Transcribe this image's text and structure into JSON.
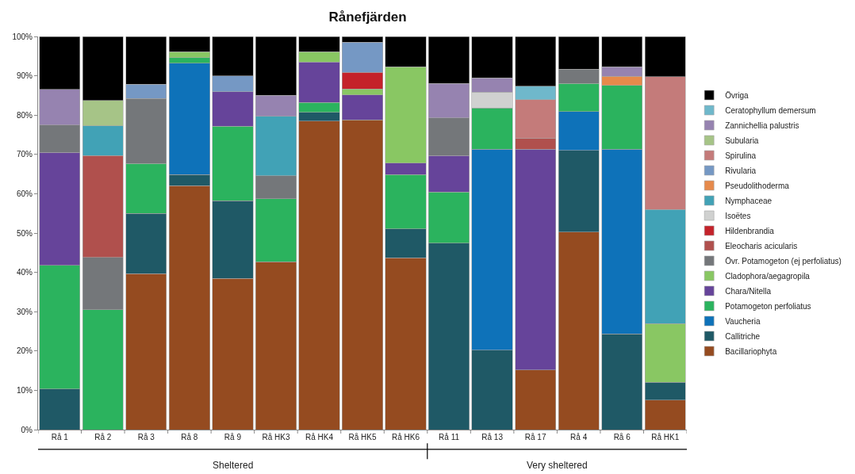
{
  "chart_data": {
    "type": "bar",
    "stacked": true,
    "title": "Rånefjärden",
    "categories": [
      "Rå 1",
      "Rå 2",
      "Rå 3",
      "Rå 8",
      "Rå 9",
      "Rå HK3",
      "Rå HK4",
      "Rå HK5",
      "Rå HK6",
      "Rå 11",
      "Rå 13",
      "Rå 17",
      "Rå 4",
      "Rå 6",
      "Rå HK1"
    ],
    "series": [
      {
        "name": "Bacillariophyta",
        "color": "#954b20",
        "values": [
          null,
          null,
          39.7,
          62,
          38.5,
          42.7,
          78.5,
          78.8,
          43.7,
          null,
          null,
          15.2,
          50.3,
          null,
          7.5
        ]
      },
      {
        "name": "Callitriche",
        "color": "#1f5966",
        "values": [
          10.3,
          null,
          15.3,
          2.9,
          19.7,
          null,
          2.2,
          null,
          7.4,
          47.4,
          20.2,
          null,
          20.7,
          24.3,
          4.5
        ]
      },
      {
        "name": "Vaucheria",
        "color": "#0e72b9",
        "values": [
          null,
          null,
          null,
          28.3,
          null,
          null,
          null,
          null,
          null,
          null,
          51.1,
          null,
          9.9,
          47.0,
          null
        ]
      },
      {
        "name": "Potamogeton perfoliatus",
        "color": "#2bb35e",
        "values": [
          31.5,
          30.5,
          12.7,
          1.4,
          19.0,
          16.0,
          2.5,
          null,
          13.8,
          13.0,
          10.5,
          null,
          7.2,
          16.3,
          null
        ]
      },
      {
        "name": "Chara/Nitella",
        "color": "#66449a",
        "values": [
          28.7,
          null,
          null,
          null,
          8.7,
          null,
          10.3,
          6.3,
          2.9,
          9.3,
          null,
          56.1,
          null,
          null,
          null
        ]
      },
      {
        "name": "Cladophora/aegagropila",
        "color": "#89c763",
        "values": [
          null,
          null,
          null,
          1.5,
          null,
          null,
          2.6,
          1.5,
          24.5,
          null,
          null,
          null,
          null,
          null,
          15.0
        ]
      },
      {
        "name": "Övr. Potamogeton (ej perfoliatus)",
        "color": "#74777a",
        "values": [
          7.0,
          13.3,
          16.5,
          null,
          null,
          5.9,
          null,
          null,
          null,
          9.6,
          null,
          null,
          3.6,
          null,
          null
        ]
      },
      {
        "name": "Eleocharis acicularis",
        "color": "#b0504d",
        "values": [
          null,
          25.9,
          null,
          null,
          null,
          null,
          null,
          null,
          null,
          null,
          null,
          2.7,
          null,
          null,
          null
        ]
      },
      {
        "name": "Hildenbrandia",
        "color": "#c4222a",
        "values": [
          null,
          null,
          null,
          null,
          null,
          null,
          null,
          4.3,
          null,
          null,
          null,
          null,
          null,
          null,
          null
        ]
      },
      {
        "name": "Isoëtes",
        "color": "#d0d1d0",
        "values": [
          null,
          null,
          null,
          null,
          null,
          null,
          null,
          null,
          null,
          null,
          4.0,
          null,
          null,
          null,
          null
        ]
      },
      {
        "name": "Nymphaceae",
        "color": "#41a2b6",
        "values": [
          null,
          7.6,
          null,
          null,
          null,
          15.1,
          null,
          null,
          null,
          null,
          null,
          null,
          null,
          null,
          29.0
        ]
      },
      {
        "name": "Pseudolithoderma",
        "color": "#e68a4b",
        "values": [
          null,
          null,
          null,
          null,
          null,
          null,
          null,
          null,
          null,
          null,
          null,
          null,
          null,
          2.3,
          null
        ]
      },
      {
        "name": "Rivularia",
        "color": "#7598c4",
        "values": [
          null,
          null,
          3.7,
          null,
          4.1,
          null,
          null,
          7.6,
          null,
          null,
          null,
          null,
          null,
          null,
          null
        ]
      },
      {
        "name": "Spirulina",
        "color": "#c47b7a",
        "values": [
          null,
          null,
          null,
          null,
          null,
          null,
          null,
          null,
          null,
          null,
          null,
          9.9,
          null,
          null,
          33.8
        ]
      },
      {
        "name": "Subularia",
        "color": "#a6c487",
        "values": [
          null,
          6.4,
          null,
          null,
          null,
          null,
          null,
          null,
          null,
          null,
          null,
          null,
          null,
          null,
          null
        ]
      },
      {
        "name": "Zannichellia palustris",
        "color": "#9683b0",
        "values": [
          9.0,
          null,
          null,
          null,
          null,
          5.3,
          null,
          null,
          null,
          8.8,
          3.7,
          null,
          null,
          2.4,
          null
        ]
      },
      {
        "name": "Ceratophyllum demersum",
        "color": "#6fb8cb",
        "values": [
          null,
          null,
          null,
          null,
          null,
          null,
          null,
          null,
          null,
          null,
          null,
          3.5,
          null,
          null,
          null
        ]
      },
      {
        "name": "Övriga",
        "color": "#000000",
        "values": [
          13.5,
          16.3,
          12.1,
          3.9,
          10.0,
          15.0,
          3.9,
          1.5,
          7.7,
          11.9,
          10.5,
          12.6,
          8.3,
          7.7,
          10.2
        ]
      }
    ],
    "ylim": [
      0,
      100
    ],
    "yticks": [
      {
        "value": 0,
        "label": "0%"
      },
      {
        "value": 10,
        "label": "10%"
      },
      {
        "value": 20,
        "label": "20%"
      },
      {
        "value": 30,
        "label": "30%"
      },
      {
        "value": 40,
        "label": "40%"
      },
      {
        "value": 50,
        "label": "50%"
      },
      {
        "value": 60,
        "label": "60%"
      },
      {
        "value": 70,
        "label": "70%"
      },
      {
        "value": 80,
        "label": "80%"
      },
      {
        "value": 90,
        "label": "90%"
      },
      {
        "value": 100,
        "label": "100%"
      }
    ],
    "legend": "right",
    "annotations": [
      "Sheltered",
      "Very sheltered"
    ]
  }
}
